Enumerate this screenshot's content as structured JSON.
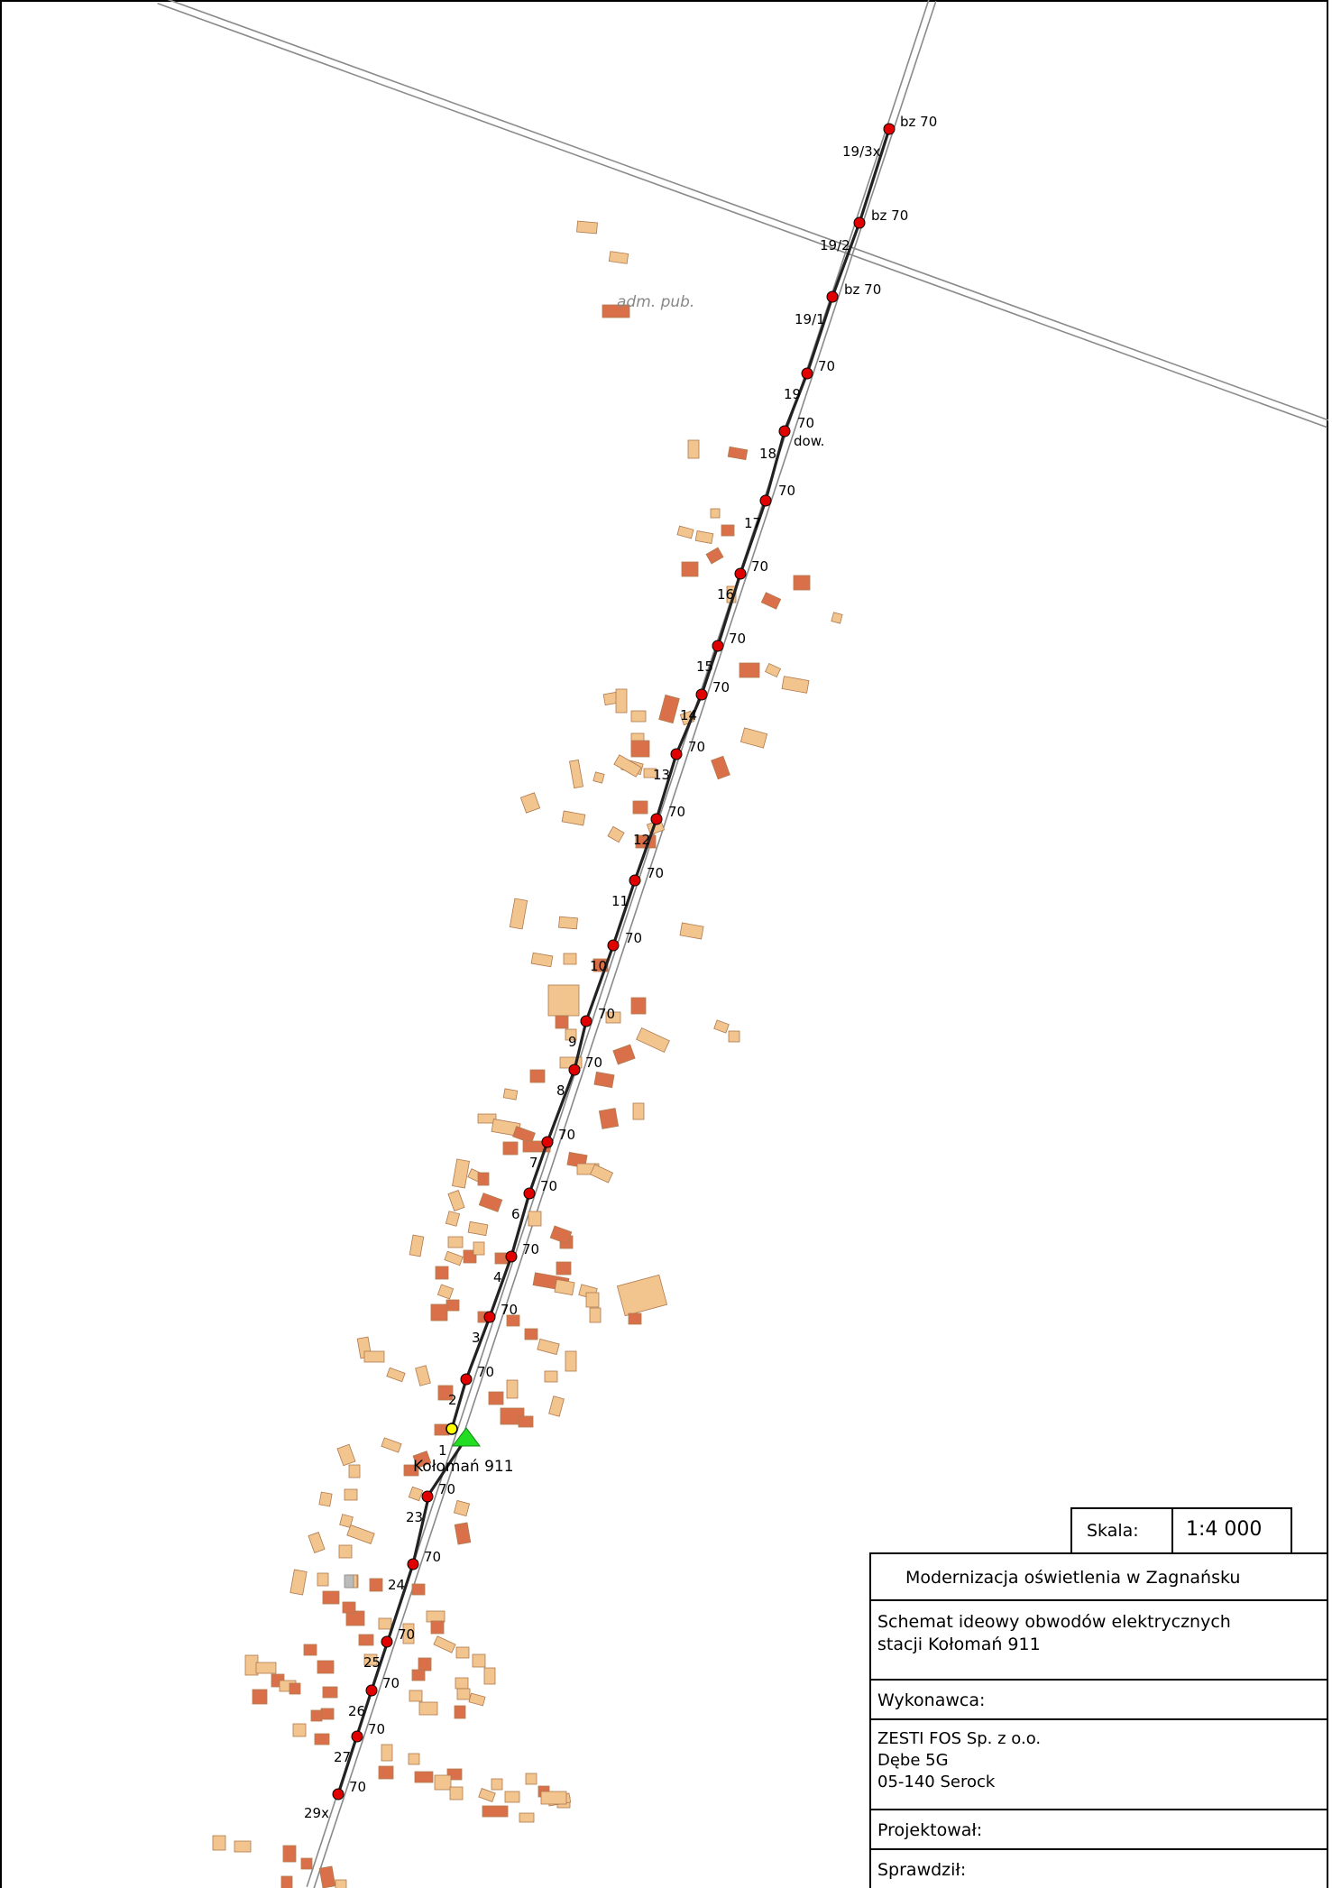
{
  "map": {
    "station_label": "Kołomań 911",
    "area_label": "adm. pub.",
    "note_label": "dow.",
    "poles": [
      {
        "id": "19/3x",
        "power": "bz 70"
      },
      {
        "id": "19/2",
        "power": "bz 70"
      },
      {
        "id": "19/1",
        "power": "bz 70"
      },
      {
        "id": "19",
        "power": "70"
      },
      {
        "id": "18",
        "power": "70"
      },
      {
        "id": "17",
        "power": "70"
      },
      {
        "id": "16",
        "power": "70"
      },
      {
        "id": "15",
        "power": "70"
      },
      {
        "id": "14",
        "power": "70"
      },
      {
        "id": "13",
        "power": "70"
      },
      {
        "id": "12",
        "power": "70"
      },
      {
        "id": "11",
        "power": "70"
      },
      {
        "id": "10",
        "power": "70"
      },
      {
        "id": "9",
        "power": "70"
      },
      {
        "id": "8",
        "power": "70"
      },
      {
        "id": "7",
        "power": "70"
      },
      {
        "id": "6",
        "power": "70"
      },
      {
        "id": "4",
        "power": "70"
      },
      {
        "id": "3",
        "power": "70"
      },
      {
        "id": "2",
        "power": "70"
      },
      {
        "id": "1",
        "power": ""
      },
      {
        "id": "23",
        "power": "70"
      },
      {
        "id": "24",
        "power": "70"
      },
      {
        "id": "25",
        "power": "70"
      },
      {
        "id": "26",
        "power": "70"
      },
      {
        "id": "27",
        "power": "70"
      },
      {
        "id": "29x",
        "power": "70"
      }
    ],
    "colors": {
      "pole": "#e00000",
      "station": "#22dd22",
      "start_point": "#ffff00",
      "cable": "#222222",
      "road": "#8a8a8a",
      "building_light": "#f2c48e",
      "building_dark": "#d9704a"
    }
  },
  "title_block": {
    "scale_label": "Skala:",
    "scale_value": "1:4 000",
    "project_title": "Modernizacja oświetlenia w Zagnańsku",
    "drawing_title_line1": "Schemat ideowy obwodów elektrycznych",
    "drawing_title_line2": "stacji Kołomań 911",
    "contractor_label": "Wykonawca:",
    "contractor_line1": "ZESTI FOS Sp. z o.o.",
    "contractor_line2": "Dębe 5G",
    "contractor_line3": "05-140 Serock",
    "designed_label": "Projektował:",
    "checked_label": "Sprawdził:"
  }
}
